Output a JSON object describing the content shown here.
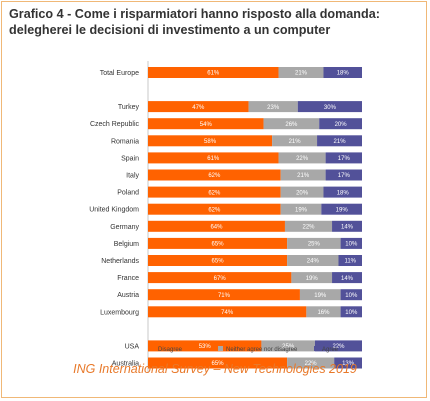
{
  "title": "Grafico 4 - Come i risparmiatori hanno risposto alla domanda: delegherei le decisioni di investimento a un computer",
  "footer": "ING International Survey – New Technologies 2019",
  "colors": {
    "disagree": "#ff6200",
    "neutral": "#a8a8a8",
    "agree": "#525199",
    "frame": "#f0b877",
    "footer": "#e8792a"
  },
  "chart_data": {
    "type": "bar",
    "orientation": "horizontal",
    "stacked": true,
    "percent_stacked": true,
    "xlim": [
      0,
      100
    ],
    "legend_position": "bottom",
    "grid": false,
    "categories": [
      "Total Europe",
      "Turkey",
      "Czech Republic",
      "Romania",
      "Spain",
      "Italy",
      "Poland",
      "United Kingdom",
      "Germany",
      "Belgium",
      "Netherlands",
      "France",
      "Austria",
      "Luxembourg",
      "USA",
      "Australia"
    ],
    "groups": [
      [
        0
      ],
      [
        1,
        2,
        3,
        4,
        5,
        6,
        7,
        8,
        9,
        10,
        11,
        12,
        13
      ],
      [
        14,
        15
      ]
    ],
    "series": [
      {
        "name": "Disagree",
        "values": [
          61,
          47,
          54,
          58,
          61,
          62,
          62,
          62,
          64,
          65,
          65,
          67,
          71,
          74,
          53,
          65
        ],
        "labels": [
          "61%",
          "47%",
          "54%",
          "58%",
          "61%",
          "62%",
          "62%",
          "62%",
          "64%",
          "65%",
          "65%",
          "67%",
          "71%",
          "74%",
          "53%",
          "65%"
        ]
      },
      {
        "name": "Neither agree nor disagree",
        "values": [
          21,
          23,
          26,
          21,
          22,
          21,
          20,
          19,
          22,
          25,
          24,
          19,
          19,
          16,
          25,
          22
        ],
        "labels": [
          "21%",
          "23%",
          "26%",
          "21%",
          "22%",
          "21%",
          "20%",
          "19%",
          "22%",
          "25%",
          "24%",
          "19%",
          "19%",
          "16%",
          "25%",
          "22%"
        ]
      },
      {
        "name": "Agree",
        "values": [
          18,
          30,
          20,
          21,
          17,
          17,
          18,
          19,
          14,
          10,
          11,
          14,
          10,
          10,
          22,
          13
        ],
        "labels": [
          "18%",
          "30%",
          "20%",
          "21%",
          "17%",
          "17%",
          "18%",
          "19%",
          "14%",
          "10%",
          "11%",
          "14%",
          "10%",
          "10%",
          "22%",
          "13%"
        ]
      }
    ]
  }
}
